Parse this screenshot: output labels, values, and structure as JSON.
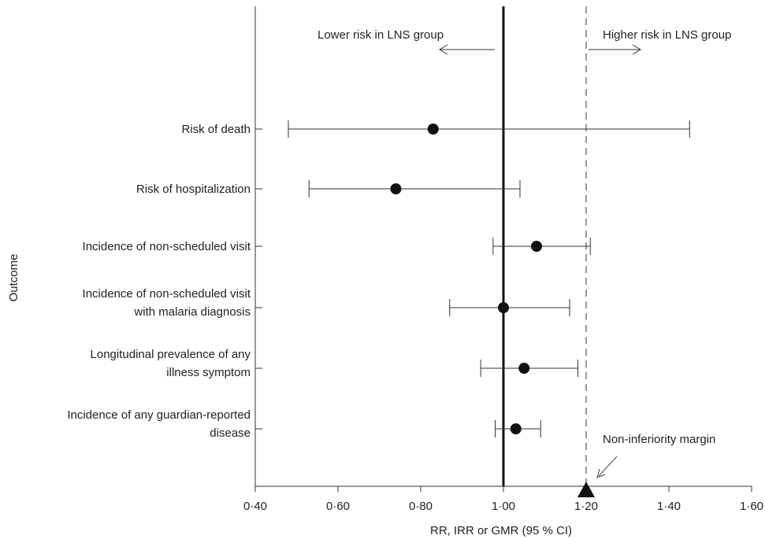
{
  "chart_data": {
    "type": "forest",
    "xlabel": "RR, IRR or GMR (95 % CI)",
    "ylabel": "Outcome",
    "xlim": [
      0.4,
      1.6
    ],
    "x_ticks": [
      {
        "value": 0.4,
        "label": "0·40"
      },
      {
        "value": 0.6,
        "label": "0·60"
      },
      {
        "value": 0.8,
        "label": "0·80"
      },
      {
        "value": 1.0,
        "label": "1·00"
      },
      {
        "value": 1.2,
        "label": "1·20"
      },
      {
        "value": 1.4,
        "label": "1·40"
      },
      {
        "value": 1.6,
        "label": "1·60"
      }
    ],
    "reference_line": 1.0,
    "non_inferiority_margin": 1.2,
    "annotations": {
      "lower": "Lower risk in LNS group",
      "higher": "Higher risk in LNS group",
      "margin": "Non-inferiority margin"
    },
    "outcomes": [
      {
        "label": [
          "Risk of death"
        ],
        "estimate": 0.83,
        "lower": 0.48,
        "upper": 1.45
      },
      {
        "label": [
          "Risk of hospitalization"
        ],
        "estimate": 0.74,
        "lower": 0.53,
        "upper": 1.04
      },
      {
        "label": [
          "Incidence of non-scheduled visit"
        ],
        "estimate": 1.08,
        "lower": 0.975,
        "upper": 1.21
      },
      {
        "label": [
          "Incidence of non-scheduled visit",
          "with malaria diagnosis"
        ],
        "estimate": 1.0,
        "lower": 0.87,
        "upper": 1.16
      },
      {
        "label": [
          "Longitudinal prevalence of any",
          "illness symptom"
        ],
        "estimate": 1.05,
        "lower": 0.945,
        "upper": 1.18
      },
      {
        "label": [
          "Incidence of any guardian-reported",
          "disease"
        ],
        "estimate": 1.03,
        "lower": 0.98,
        "upper": 1.09
      }
    ],
    "grid": false,
    "legend": "none"
  }
}
